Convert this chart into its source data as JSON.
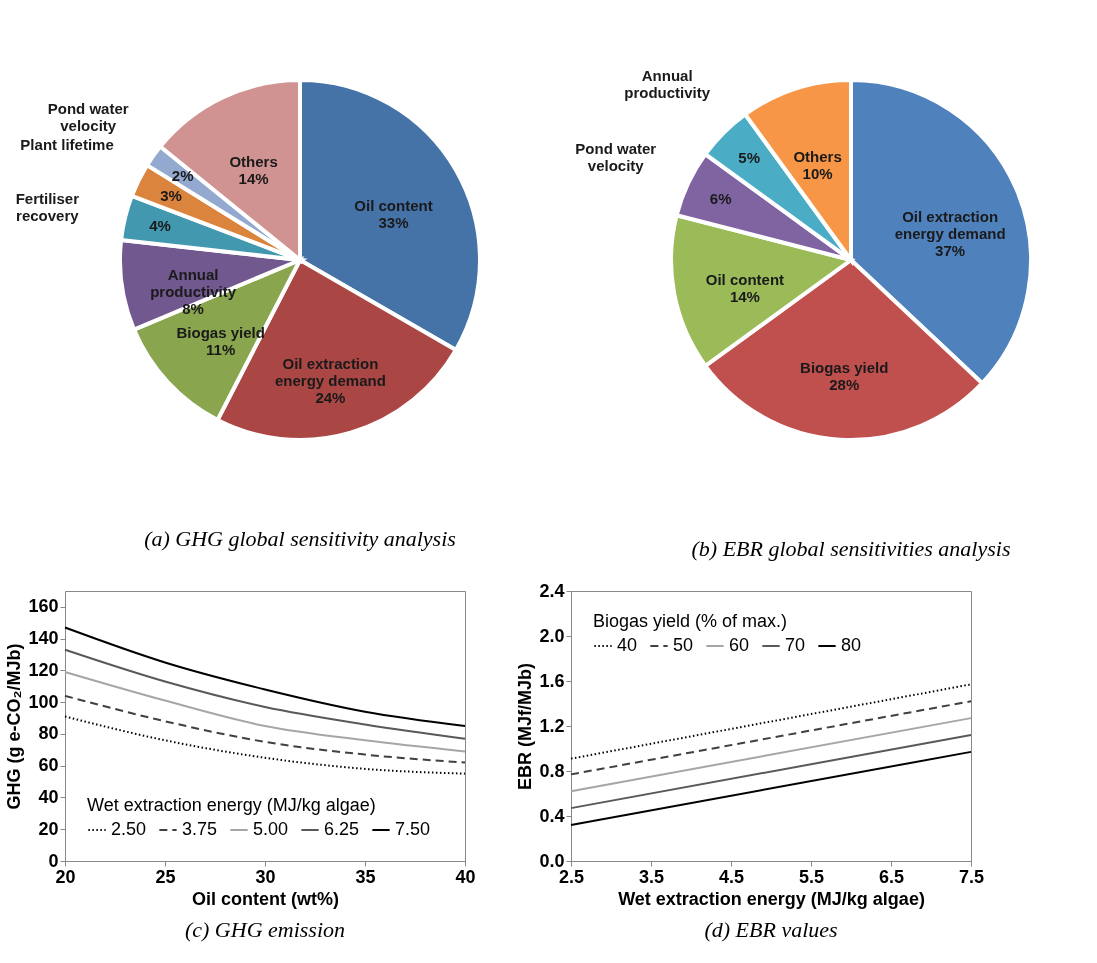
{
  "chart_data": [
    {
      "type": "pie",
      "title": "(a) GHG global sensitivity analysis",
      "categories": [
        "Oil content",
        "Oil extraction energy demand",
        "Biogas yield",
        "Annual productivity",
        "Fertiliser recovery",
        "Plant lifetime",
        "Pond water velocity",
        "Others"
      ],
      "values": [
        33,
        24,
        11,
        8,
        4,
        3,
        2,
        14
      ],
      "value_labels": [
        "33%",
        "24%",
        "11%",
        "8%",
        "4%",
        "3%",
        "2%",
        "14%"
      ],
      "colors": [
        "#4572a7",
        "#aa4643",
        "#89a54e",
        "#71588f",
        "#4198af",
        "#db843d",
        "#93a9cf",
        "#d19392"
      ]
    },
    {
      "type": "pie",
      "title": "(b) EBR global sensitivities analysis",
      "categories": [
        "Oil extraction energy demand",
        "Biogas yield",
        "Oil content",
        "Pond water velocity",
        "Annual productivity",
        "Others"
      ],
      "values": [
        37,
        28,
        14,
        6,
        5,
        10
      ],
      "value_labels": [
        "37%",
        "28%",
        "14%",
        "6%",
        "5%",
        "10%"
      ],
      "colors": [
        "#4f81bd",
        "#c0504d",
        "#9bbb59",
        "#8064a2",
        "#4bacc6",
        "#f79646"
      ]
    },
    {
      "type": "line",
      "title": "(c) GHG emission",
      "xlabel": "Oil content (wt%)",
      "ylabel": "GHG (g e-CO₂/MJb)",
      "legend_title": "Wet extraction energy (MJ/kg algae)",
      "legend": "bottom left",
      "grid": false,
      "x": [
        20,
        25,
        30,
        35,
        40
      ],
      "xlim": [
        20,
        40
      ],
      "xticks": [
        20,
        25,
        30,
        35,
        40
      ],
      "ylim": [
        0,
        170
      ],
      "yticks": [
        0,
        20,
        40,
        60,
        80,
        100,
        120,
        140,
        160
      ],
      "series": [
        {
          "name": "2.50",
          "color": "#000000",
          "line_style": "dotted",
          "values": [
            91,
            76,
            65,
            58,
            55
          ]
        },
        {
          "name": "3.75",
          "color": "#404040",
          "line_style": "dashed",
          "values": [
            104,
            88,
            75,
            67,
            62
          ]
        },
        {
          "name": "5.00",
          "color": "#a6a6a6",
          "line_style": "solid",
          "values": [
            119,
            101,
            85,
            76,
            69
          ]
        },
        {
          "name": "6.25",
          "color": "#595959",
          "line_style": "solid",
          "values": [
            133,
            113,
            97,
            86,
            77
          ]
        },
        {
          "name": "7.50",
          "color": "#000000",
          "line_style": "solid",
          "values": [
            147,
            125,
            108,
            94,
            85
          ]
        }
      ]
    },
    {
      "type": "line",
      "title": "(d) EBR values",
      "xlabel": "Wet extraction energy (MJ/kg algae)",
      "ylabel": "EBR (MJf/MJb)",
      "legend_title": "Biogas yield (% of max.)",
      "legend": "top left",
      "grid": false,
      "x": [
        2.5,
        7.5
      ],
      "xlim": [
        2.5,
        7.5
      ],
      "xticks": [
        2.5,
        3.5,
        4.5,
        5.5,
        6.5,
        7.5
      ],
      "ylim": [
        0,
        2.4
      ],
      "yticks": [
        {
          "value": 0,
          "label": "0.0"
        },
        0.4,
        0.8,
        1.2,
        1.6,
        {
          "value": 2,
          "label": "2.0"
        },
        2.4
      ],
      "series": [
        {
          "name": "40",
          "color": "#000000",
          "line_style": "dotted",
          "values": [
            0.91,
            1.57
          ]
        },
        {
          "name": "50",
          "color": "#404040",
          "line_style": "dashed",
          "values": [
            0.77,
            1.42
          ]
        },
        {
          "name": "60",
          "color": "#a6a6a6",
          "line_style": "solid",
          "values": [
            0.62,
            1.27
          ]
        },
        {
          "name": "70",
          "color": "#595959",
          "line_style": "solid",
          "values": [
            0.47,
            1.12
          ]
        },
        {
          "name": "80",
          "color": "#000000",
          "line_style": "solid",
          "values": [
            0.32,
            0.97
          ]
        }
      ]
    }
  ]
}
